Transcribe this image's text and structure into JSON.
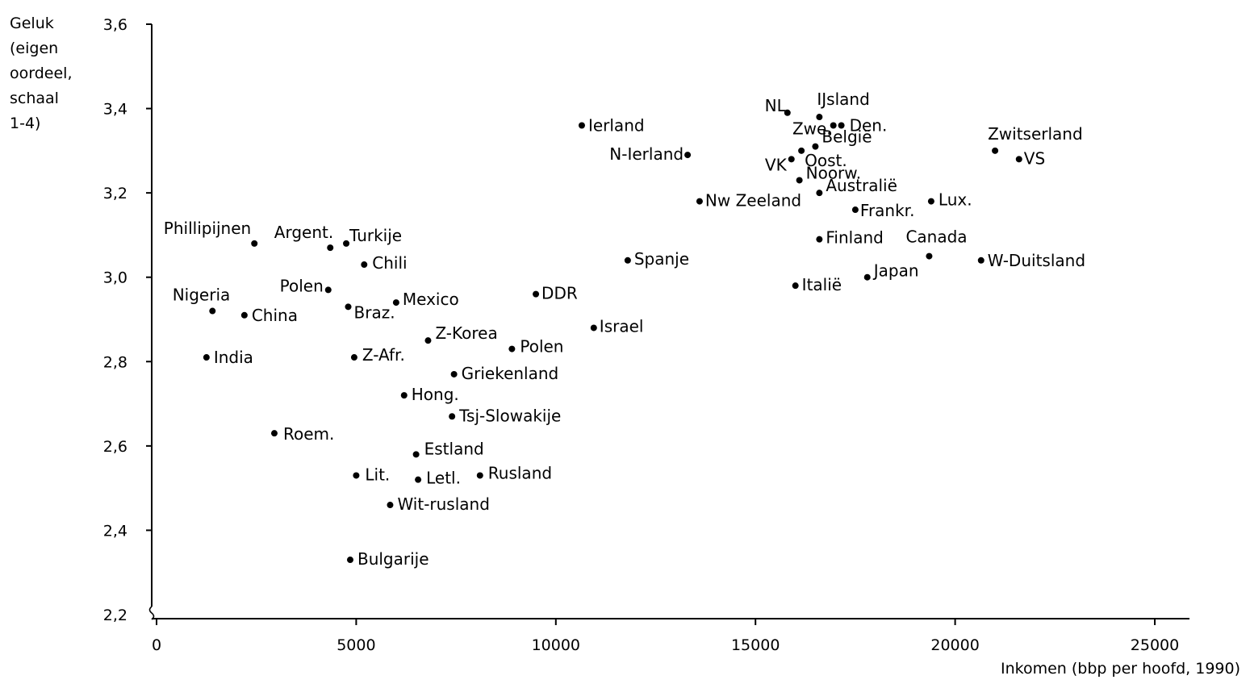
{
  "chart_data": {
    "type": "scatter",
    "ylabel_lines": [
      "Geluk",
      "(eigen",
      "oordeel,",
      "schaal",
      "1-4)"
    ],
    "xlabel": "Inkomen (bbp per hoofd, 1990)",
    "xlim": [
      0,
      26000
    ],
    "ylim": [
      2.2,
      3.6
    ],
    "x_ticks": [
      "0",
      "5000",
      "10000",
      "15000",
      "20000",
      "25000"
    ],
    "y_ticks": [
      "2,2",
      "2,4",
      "2,6",
      "2,8",
      "3,0",
      "3,2",
      "3,4",
      "3,6"
    ],
    "grid": false,
    "points": [
      {
        "label": "Phillipijnen",
        "x": 2450,
        "y": 3.08
      },
      {
        "label": "Argent.",
        "x": 4350,
        "y": 3.07
      },
      {
        "label": "Turkije",
        "x": 4750,
        "y": 3.08
      },
      {
        "label": "Chili",
        "x": 5200,
        "y": 3.03
      },
      {
        "label": "Polen",
        "x": 4300,
        "y": 2.97
      },
      {
        "label": "Nigeria",
        "x": 1400,
        "y": 2.92
      },
      {
        "label": "China",
        "x": 2200,
        "y": 2.91
      },
      {
        "label": "Braz.",
        "x": 4800,
        "y": 2.93
      },
      {
        "label": "Mexico",
        "x": 6000,
        "y": 2.94
      },
      {
        "label": "India",
        "x": 1250,
        "y": 2.81
      },
      {
        "label": "Z-Afr.",
        "x": 4950,
        "y": 2.81
      },
      {
        "label": "Z-Korea",
        "x": 6800,
        "y": 2.85
      },
      {
        "label": "Polen",
        "x": 8900,
        "y": 2.83
      },
      {
        "label": "Griekenland",
        "x": 7450,
        "y": 2.77
      },
      {
        "label": "Hong.",
        "x": 6200,
        "y": 2.72
      },
      {
        "label": "Tsj-Slowakije",
        "x": 7400,
        "y": 2.67
      },
      {
        "label": "Roem.",
        "x": 2950,
        "y": 2.63
      },
      {
        "label": "Estland",
        "x": 6500,
        "y": 2.58
      },
      {
        "label": "Lit.",
        "x": 5000,
        "y": 2.53
      },
      {
        "label": "Letl.",
        "x": 6550,
        "y": 2.52
      },
      {
        "label": "Rusland",
        "x": 8100,
        "y": 2.53
      },
      {
        "label": "Wit-rusland",
        "x": 5850,
        "y": 2.46
      },
      {
        "label": "Bulgarije",
        "x": 4850,
        "y": 2.33
      },
      {
        "label": "DDR",
        "x": 9500,
        "y": 2.96
      },
      {
        "label": "Israel",
        "x": 10950,
        "y": 2.88
      },
      {
        "label": "Spanje",
        "x": 11800,
        "y": 3.04
      },
      {
        "label": "Ierland",
        "x": 10650,
        "y": 3.36
      },
      {
        "label": "N-Ierland",
        "x": 13300,
        "y": 3.29
      },
      {
        "label": "Nw Zeeland",
        "x": 13600,
        "y": 3.18
      },
      {
        "label": "NL",
        "x": 15800,
        "y": 3.39
      },
      {
        "label": "IJsland",
        "x": 16600,
        "y": 3.38
      },
      {
        "label": "Zwe.",
        "x": 16950,
        "y": 3.36
      },
      {
        "label": "Den.",
        "x": 17150,
        "y": 3.36
      },
      {
        "label": "België",
        "x": 16500,
        "y": 3.31
      },
      {
        "label": "Oost.",
        "x": 16150,
        "y": 3.3
      },
      {
        "label": "VK",
        "x": 15900,
        "y": 3.28
      },
      {
        "label": "Noorw.",
        "x": 16100,
        "y": 3.23
      },
      {
        "label": "Australië",
        "x": 16600,
        "y": 3.2
      },
      {
        "label": "Frankr.",
        "x": 17500,
        "y": 3.16
      },
      {
        "label": "Lux.",
        "x": 19400,
        "y": 3.18
      },
      {
        "label": "Zwitserland",
        "x": 21000,
        "y": 3.3
      },
      {
        "label": "VS",
        "x": 21600,
        "y": 3.28
      },
      {
        "label": "Finland",
        "x": 16600,
        "y": 3.09
      },
      {
        "label": "Italië",
        "x": 16000,
        "y": 2.98
      },
      {
        "label": "Japan",
        "x": 17800,
        "y": 3.0
      },
      {
        "label": "Canada",
        "x": 19350,
        "y": 3.05
      },
      {
        "label": "W-Duitsland",
        "x": 20650,
        "y": 3.04
      }
    ]
  }
}
